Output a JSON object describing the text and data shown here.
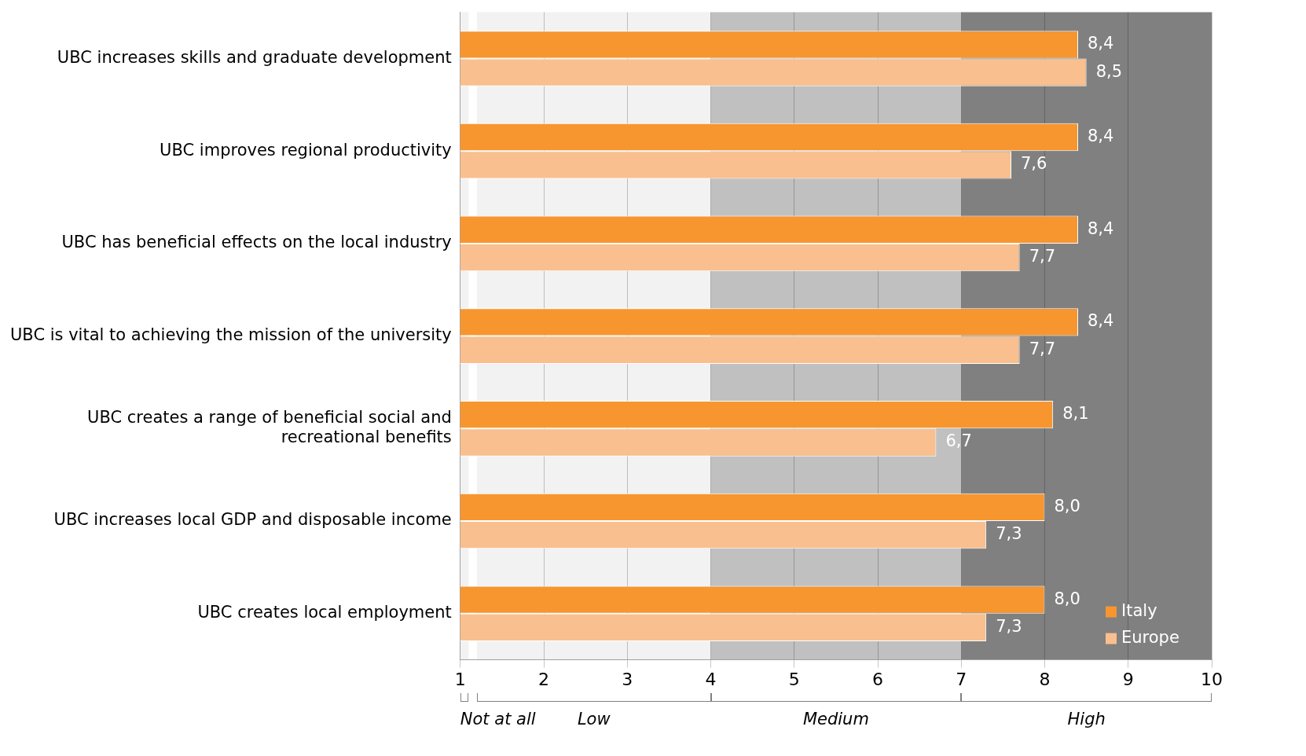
{
  "chart_data": {
    "type": "bar",
    "orientation": "horizontal",
    "categories": [
      "UBC increases skills and graduate development",
      "UBC improves regional productivity",
      "UBC has beneficial effects on the local industry",
      "UBC is vital to achieving the mission of the university",
      "UBC creates a range of beneficial social and recreational benefits",
      "UBC increases local GDP and disposable income",
      "UBC creates local employment"
    ],
    "series": [
      {
        "name": "Italy",
        "color": "#f7962f",
        "values": [
          8.4,
          8.4,
          8.4,
          8.4,
          8.1,
          8.0,
          8.0
        ],
        "value_labels": [
          "8,4",
          "8,4",
          "8,4",
          "8,4",
          "8,1",
          "8,0",
          "8,0"
        ]
      },
      {
        "name": "Europe",
        "color": "#f9bf8f",
        "values": [
          8.5,
          7.6,
          7.7,
          7.7,
          6.7,
          7.3,
          7.3
        ],
        "value_labels": [
          "8,5",
          "7,6",
          "7,7",
          "7,7",
          "6,7",
          "7,3",
          "7,3"
        ]
      }
    ],
    "xlim": [
      1,
      10
    ],
    "xticks": [
      1,
      2,
      3,
      4,
      5,
      6,
      7,
      8,
      9,
      10
    ],
    "grid": "x",
    "legend": "bottom right",
    "bands": [
      {
        "axis": "x",
        "from": 1,
        "to": 1.1,
        "label": "Not at all",
        "color": "#f2f2f2"
      },
      {
        "axis": "x",
        "from": 1.2,
        "to": 4,
        "label": "Low",
        "color": "#f2f2f2"
      },
      {
        "axis": "x",
        "from": 4,
        "to": 7,
        "label": "Medium",
        "color": "#c0c0c0"
      },
      {
        "axis": "x",
        "from": 7,
        "to": 10,
        "label": "High",
        "color": "#808080"
      }
    ]
  }
}
